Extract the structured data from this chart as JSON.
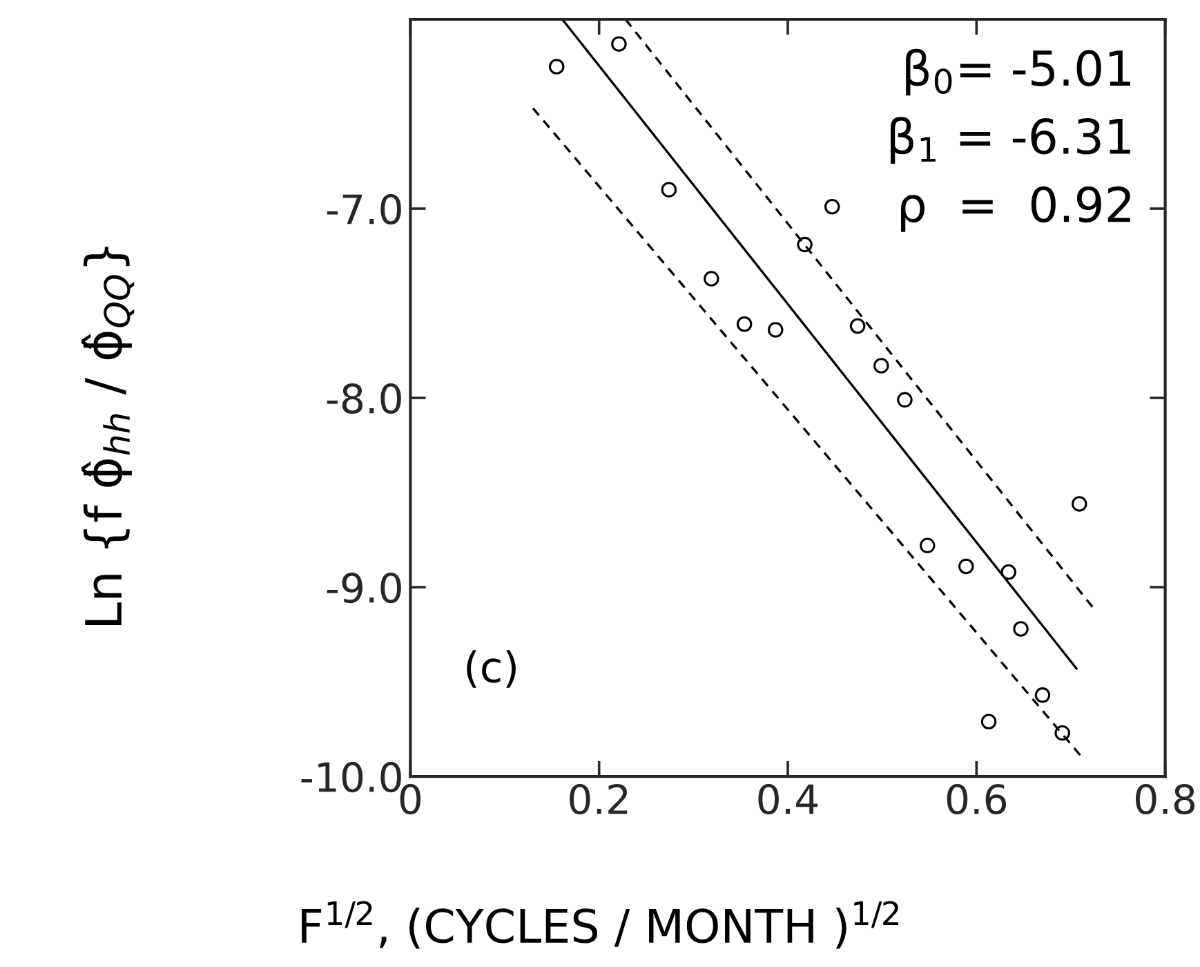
{
  "chart_data": {
    "type": "scatter",
    "xlabel": "F$^{1/2}$, (CYCLES / MONTH )$^{1/2}$",
    "ylabel": "Ln {f ϕ̂$_{hh}$ / ϕ̂$_{QQ}$}",
    "xlim": [
      0,
      0.8
    ],
    "ylim": [
      -10,
      -6.0
    ],
    "xticks": [
      0,
      0.2,
      0.4,
      0.6,
      0.8
    ],
    "yticks": [
      {
        "value": -7,
        "label": "-7.0"
      },
      {
        "value": -8,
        "label": "-8.0"
      },
      {
        "value": -9,
        "label": "-9.0"
      },
      {
        "value": -10,
        "label": "-10.0"
      }
    ],
    "grid": false,
    "legend": false,
    "series": [
      {
        "color": "#000000",
        "marker": "circle",
        "x": [
          0.155,
          0.221,
          0.274,
          0.447,
          0.418,
          0.319,
          0.354,
          0.387,
          0.474,
          0.499,
          0.524,
          0.548,
          0.589,
          0.634,
          0.709,
          0.647,
          0.67,
          0.613,
          0.691
        ],
        "values": [
          -6.25,
          -6.13,
          -6.9,
          -6.99,
          -7.19,
          -7.37,
          -7.61,
          -7.64,
          -7.62,
          -7.83,
          -8.01,
          -8.78,
          -8.89,
          -8.92,
          -8.56,
          -9.22,
          -9.57,
          -9.71,
          -9.77
        ]
      },
      {
        "type": "line",
        "color": "#000000",
        "line_style": "solid",
        "x": [
          0.161,
          0.706
        ],
        "values": [
          -6.0,
          -9.43
        ]
      },
      {
        "type": "line",
        "color": "#000000",
        "line_style": "dashed",
        "x": [
          0.228,
          0.727
        ],
        "values": [
          -6.0,
          -9.13
        ]
      },
      {
        "type": "line",
        "color": "#000000",
        "line_style": "dashed",
        "x": [
          0.13,
          0.712
        ],
        "values": [
          -6.47,
          -9.9
        ]
      }
    ],
    "annotations": [
      "β$_{0}$= -5.01",
      "β$_{1}$ = -6.31",
      "ρ  =  0.92",
      "(c)"
    ]
  }
}
